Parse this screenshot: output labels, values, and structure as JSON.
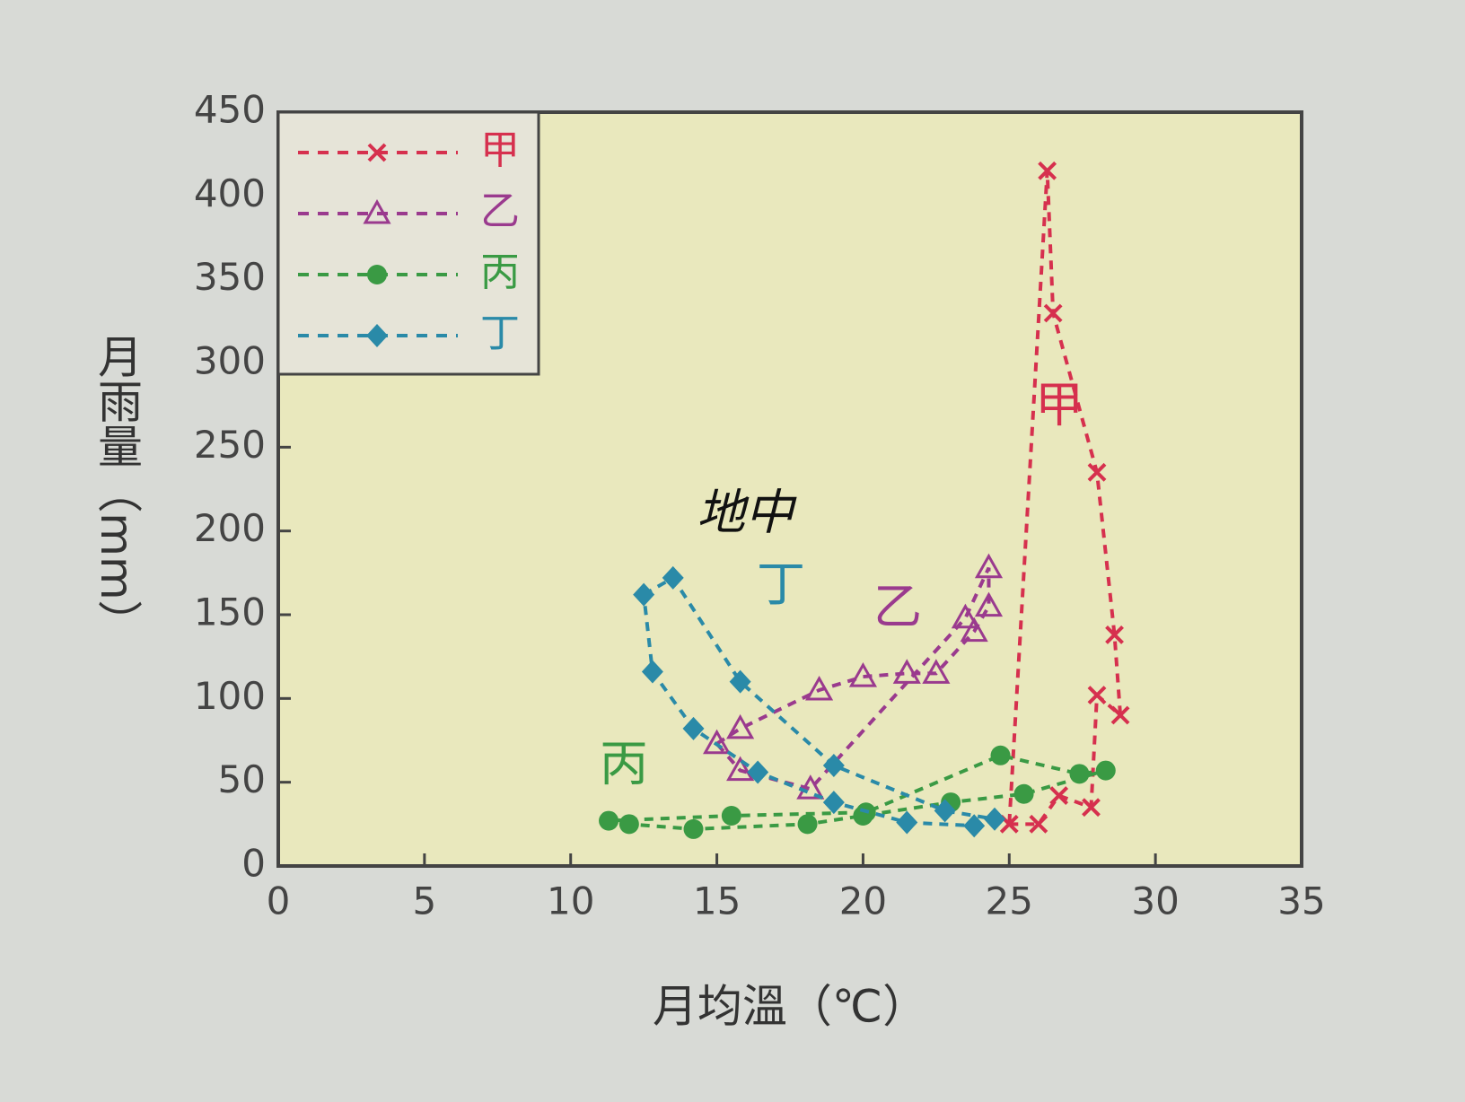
{
  "chart_data": {
    "type": "line",
    "x_label": "月均溫（℃）",
    "y_label": "月雨量（mm）",
    "xlim": [
      0,
      35
    ],
    "xticks": [
      0,
      5,
      10,
      15,
      20,
      25,
      30,
      35
    ],
    "ylim": [
      0,
      450
    ],
    "yticks": [
      0,
      50,
      100,
      150,
      200,
      250,
      300,
      350,
      400,
      450
    ],
    "closed": true,
    "legend": "upper left",
    "series": [
      {
        "name": "甲",
        "color": "#d6304e",
        "marker": "cross",
        "x": [
          25.0,
          26.0,
          26.7,
          27.8,
          28.0,
          28.8,
          28.6,
          28.0,
          26.5,
          26.3
        ],
        "values": [
          25,
          25,
          42,
          35,
          102,
          90,
          138,
          235,
          330,
          415
        ]
      },
      {
        "name": "乙",
        "color": "#9a3a8e",
        "marker": "triangle",
        "x": [
          15.0,
          15.8,
          18.5,
          20.0,
          21.5,
          22.5,
          23.8,
          24.3,
          24.3,
          23.5,
          18.2,
          15.8
        ],
        "values": [
          73,
          82,
          105,
          113,
          115,
          115,
          140,
          155,
          178,
          148,
          46,
          57
        ]
      },
      {
        "name": "丙",
        "color": "#3a9a44",
        "marker": "circle",
        "x": [
          11.3,
          12.0,
          14.2,
          18.1,
          20.0,
          23.0,
          25.5,
          28.3,
          27.4,
          24.7,
          20.1,
          15.5
        ],
        "values": [
          27,
          25,
          22,
          25,
          30,
          38,
          43,
          57,
          55,
          66,
          32,
          30
        ]
      },
      {
        "name": "丁",
        "color": "#2a8aa8",
        "marker": "diamond",
        "x": [
          12.5,
          13.5,
          15.8,
          19.0,
          22.8,
          24.5,
          23.8,
          21.5,
          19.0,
          16.4,
          14.2,
          12.8
        ],
        "values": [
          162,
          172,
          110,
          60,
          33,
          28,
          24,
          26,
          38,
          56,
          82,
          116
        ]
      }
    ],
    "annotations": [
      "甲",
      "乙",
      "丙",
      "丁",
      "地中"
    ]
  }
}
